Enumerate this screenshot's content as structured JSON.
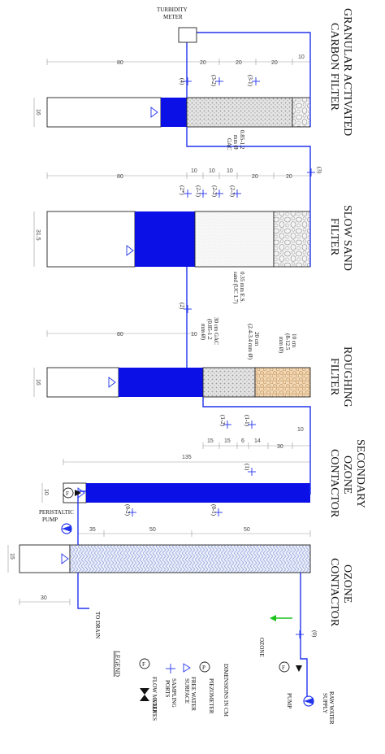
{
  "stage_titles": {
    "gac": [
      "GRANULAR ACTIVATED",
      "CARBON FILTER"
    ],
    "slow_sand": [
      "SLOW SAND",
      "FILTER"
    ],
    "roughing": [
      "ROUGHING",
      "FILTER"
    ],
    "secondary": [
      "SECONDARY",
      "OZONE",
      "CONTACTOR"
    ],
    "ozone": [
      "OZONE",
      "CONTACTOR"
    ]
  },
  "labels": {
    "turbidity_meter": [
      "TURBIDITY",
      "METER"
    ],
    "to_drain": "TO DRAIN",
    "ozone_input": "OZONE",
    "pump": "PUMP",
    "raw_water": [
      "RAW WATER",
      "SUPPLY"
    ],
    "peristaltic": [
      "PERISTALTIC",
      "PUMP"
    ],
    "flow_f": "F"
  },
  "ports": {
    "p4": "(4)",
    "p3_2": "(3-2)",
    "p3_1": "(3-1)",
    "p3": "(3)",
    "p2star": "(2*)",
    "p2_1": "(2-1)",
    "p2_2": "(2-2)",
    "p2_3": "(2-3)",
    "p2": "(2)",
    "p1_2": "(1-2)",
    "p1_1": "(1-1)",
    "p1": "(1)",
    "p0_2": "(0-2)",
    "p0_1": "(0-1)",
    "p0": "(0)"
  },
  "media": {
    "gac": [
      "0.85-1.2",
      "mm Ø",
      "GAC"
    ],
    "sand": [
      "0.35 mm E.S.",
      "sand (UC 1.7)"
    ],
    "rough_gac": [
      "30 cm GAC",
      "(0.85-1.2",
      "mm Ø)"
    ],
    "rough_gravel": [
      "20 cm",
      "(2.4-3.4 mm Ø)"
    ],
    "rough_coarse": [
      "10 cm",
      "(8-12.5",
      "mm Ø)"
    ]
  },
  "dimensions": {
    "gac_top": "80",
    "gac_width": "16",
    "gac_d1": "20",
    "gac_d2": "20",
    "gac_d3": "20",
    "gac_d4": "10",
    "ssf_top": "80",
    "ssf_width": "31.5",
    "ssf_d1": "10",
    "ssf_d2": "10",
    "ssf_d3": "10",
    "ssf_d4": "20",
    "ssf_d5": "20",
    "ssf_d6": "10",
    "rf_top": "80",
    "rf_width": "16",
    "rf_d1": "10",
    "sec_total": "135",
    "sec_d1": "15",
    "sec_d2": "15",
    "sec_d3": "6",
    "sec_d4": "14",
    "sec_d5": "30",
    "sec_d6": "10",
    "sec_width": "10",
    "oz_width": "15",
    "oz_d1": "35",
    "oz_d2": "50",
    "oz_d3": "50",
    "oz_d4": "30"
  },
  "legend": {
    "title": "LEGEND",
    "flow_meter": "FLOW METER",
    "valves": "VALVES",
    "sampling_ports": [
      "SAMPLING",
      "PORTS"
    ],
    "free_water": [
      "FREE WATER",
      "SURFACE"
    ],
    "piezometer": "PIEZOMETER",
    "dims": "DIMENSIONS IN CM",
    "p_symbol": "P"
  },
  "colors": {
    "water": "#0a10e6",
    "pipe": "#2233ee",
    "ozone_line": "#18c418",
    "pattern": "#aab8e8",
    "gravel": "#d2a26c"
  }
}
